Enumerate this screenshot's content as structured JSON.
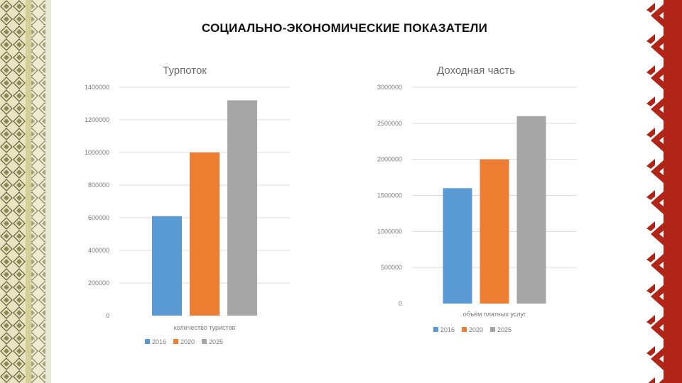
{
  "page": {
    "title": "СОЦИАЛЬНО-ЭКОНОМИЧЕСКИЕ ПОКАЗАТЕЛИ",
    "colors": {
      "left_border": "#c9c59a",
      "right_border": "#b12418"
    }
  },
  "chart_data": [
    {
      "type": "bar",
      "title": "Турпоток",
      "categories": [
        "количество туристов"
      ],
      "series": [
        {
          "name": "2016",
          "values": [
            610000
          ],
          "color": "#5b9bd5"
        },
        {
          "name": "2020",
          "values": [
            1000000
          ],
          "color": "#ed7d31"
        },
        {
          "name": "2025",
          "values": [
            1320000
          ],
          "color": "#a5a5a5"
        }
      ],
      "yticks": [
        "0",
        "200000",
        "400000",
        "600000",
        "800000",
        "1000000",
        "1200000",
        "1400000"
      ],
      "ylim": [
        0,
        1400000
      ],
      "grid": true,
      "legend": "bottom"
    },
    {
      "type": "bar",
      "title": "Доходная часть",
      "categories": [
        "объём платных услуг"
      ],
      "series": [
        {
          "name": "2016",
          "values": [
            1600000
          ],
          "color": "#5b9bd5"
        },
        {
          "name": "2020",
          "values": [
            2000000
          ],
          "color": "#ed7d31"
        },
        {
          "name": "2025",
          "values": [
            2600000
          ],
          "color": "#a5a5a5"
        }
      ],
      "yticks": [
        "0",
        "500000",
        "1000000",
        "1500000",
        "2000000",
        "2500000",
        "3000000"
      ],
      "ylim": [
        0,
        3000000
      ],
      "grid": true,
      "legend": "bottom"
    }
  ]
}
